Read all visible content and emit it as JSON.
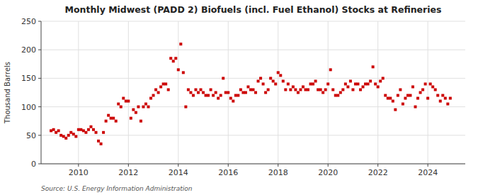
{
  "chart_data": {
    "type": "scatter",
    "title": "Monthly Midwest (PADD 2) Biofuels (incl. Fuel Ethanol) Stocks at Refineries",
    "ylabel": "Thousand Barrels",
    "source": "Source: U.S. Energy Information Administration",
    "color": "#cc0000",
    "marker": "square",
    "grid": true,
    "xlim": [
      2008.5,
      2025.5
    ],
    "xticks": [
      2010,
      2012,
      2014,
      2016,
      2018,
      2020,
      2022,
      2024
    ],
    "ylim": [
      0,
      250
    ],
    "yticks": [
      0,
      50,
      100,
      150,
      200,
      250
    ],
    "x": [
      2008.9,
      2009.0,
      2009.1,
      2009.2,
      2009.3,
      2009.4,
      2009.5,
      2009.6,
      2009.7,
      2009.8,
      2009.9,
      2010.0,
      2010.1,
      2010.2,
      2010.3,
      2010.4,
      2010.5,
      2010.6,
      2010.7,
      2010.8,
      2010.9,
      2011.0,
      2011.1,
      2011.2,
      2011.3,
      2011.4,
      2011.5,
      2011.6,
      2011.7,
      2011.8,
      2011.9,
      2012.0,
      2012.1,
      2012.2,
      2012.3,
      2012.4,
      2012.5,
      2012.6,
      2012.7,
      2012.8,
      2012.9,
      2013.0,
      2013.1,
      2013.2,
      2013.3,
      2013.4,
      2013.5,
      2013.6,
      2013.7,
      2013.8,
      2013.9,
      2014.0,
      2014.1,
      2014.2,
      2014.3,
      2014.4,
      2014.5,
      2014.6,
      2014.7,
      2014.8,
      2014.9,
      2015.0,
      2015.1,
      2015.2,
      2015.3,
      2015.4,
      2015.5,
      2015.6,
      2015.7,
      2015.8,
      2015.9,
      2016.0,
      2016.1,
      2016.2,
      2016.3,
      2016.4,
      2016.5,
      2016.6,
      2016.7,
      2016.8,
      2016.9,
      2017.0,
      2017.1,
      2017.2,
      2017.3,
      2017.4,
      2017.5,
      2017.6,
      2017.7,
      2017.8,
      2017.9,
      2018.0,
      2018.1,
      2018.2,
      2018.3,
      2018.4,
      2018.5,
      2018.6,
      2018.7,
      2018.8,
      2018.9,
      2019.0,
      2019.1,
      2019.2,
      2019.3,
      2019.4,
      2019.5,
      2019.6,
      2019.7,
      2019.8,
      2019.9,
      2020.0,
      2020.1,
      2020.2,
      2020.3,
      2020.4,
      2020.5,
      2020.6,
      2020.7,
      2020.8,
      2020.9,
      2021.0,
      2021.1,
      2021.2,
      2021.3,
      2021.4,
      2021.5,
      2021.6,
      2021.7,
      2021.8,
      2021.9,
      2022.0,
      2022.1,
      2022.2,
      2022.3,
      2022.4,
      2022.5,
      2022.6,
      2022.7,
      2022.8,
      2022.9,
      2023.0,
      2023.1,
      2023.2,
      2023.3,
      2023.4,
      2023.5,
      2023.6,
      2023.7,
      2023.8,
      2023.9,
      2024.0,
      2024.1,
      2024.2,
      2024.3,
      2024.4,
      2024.5,
      2024.6,
      2024.7,
      2024.8,
      2024.9
    ],
    "values": [
      58,
      60,
      55,
      58,
      50,
      48,
      45,
      50,
      55,
      52,
      48,
      60,
      60,
      58,
      55,
      60,
      65,
      60,
      55,
      40,
      35,
      55,
      75,
      85,
      80,
      80,
      75,
      105,
      100,
      115,
      110,
      110,
      80,
      95,
      90,
      100,
      75,
      100,
      105,
      100,
      115,
      120,
      130,
      125,
      135,
      140,
      140,
      130,
      185,
      180,
      185,
      165,
      210,
      160,
      100,
      130,
      125,
      120,
      130,
      125,
      130,
      125,
      120,
      120,
      130,
      120,
      125,
      115,
      120,
      150,
      125,
      125,
      115,
      110,
      120,
      120,
      130,
      125,
      125,
      135,
      130,
      130,
      125,
      145,
      150,
      140,
      125,
      130,
      150,
      145,
      140,
      160,
      155,
      145,
      130,
      140,
      130,
      135,
      130,
      125,
      130,
      135,
      130,
      130,
      140,
      140,
      145,
      130,
      130,
      125,
      130,
      140,
      165,
      130,
      120,
      120,
      125,
      130,
      140,
      135,
      145,
      130,
      140,
      140,
      130,
      135,
      140,
      140,
      145,
      170,
      140,
      135,
      145,
      150,
      120,
      115,
      115,
      110,
      95,
      120,
      130,
      105,
      115,
      120,
      120,
      135,
      100,
      115,
      125,
      130,
      140,
      115,
      140,
      135,
      130,
      120,
      110,
      120,
      115,
      105,
      115
    ]
  }
}
